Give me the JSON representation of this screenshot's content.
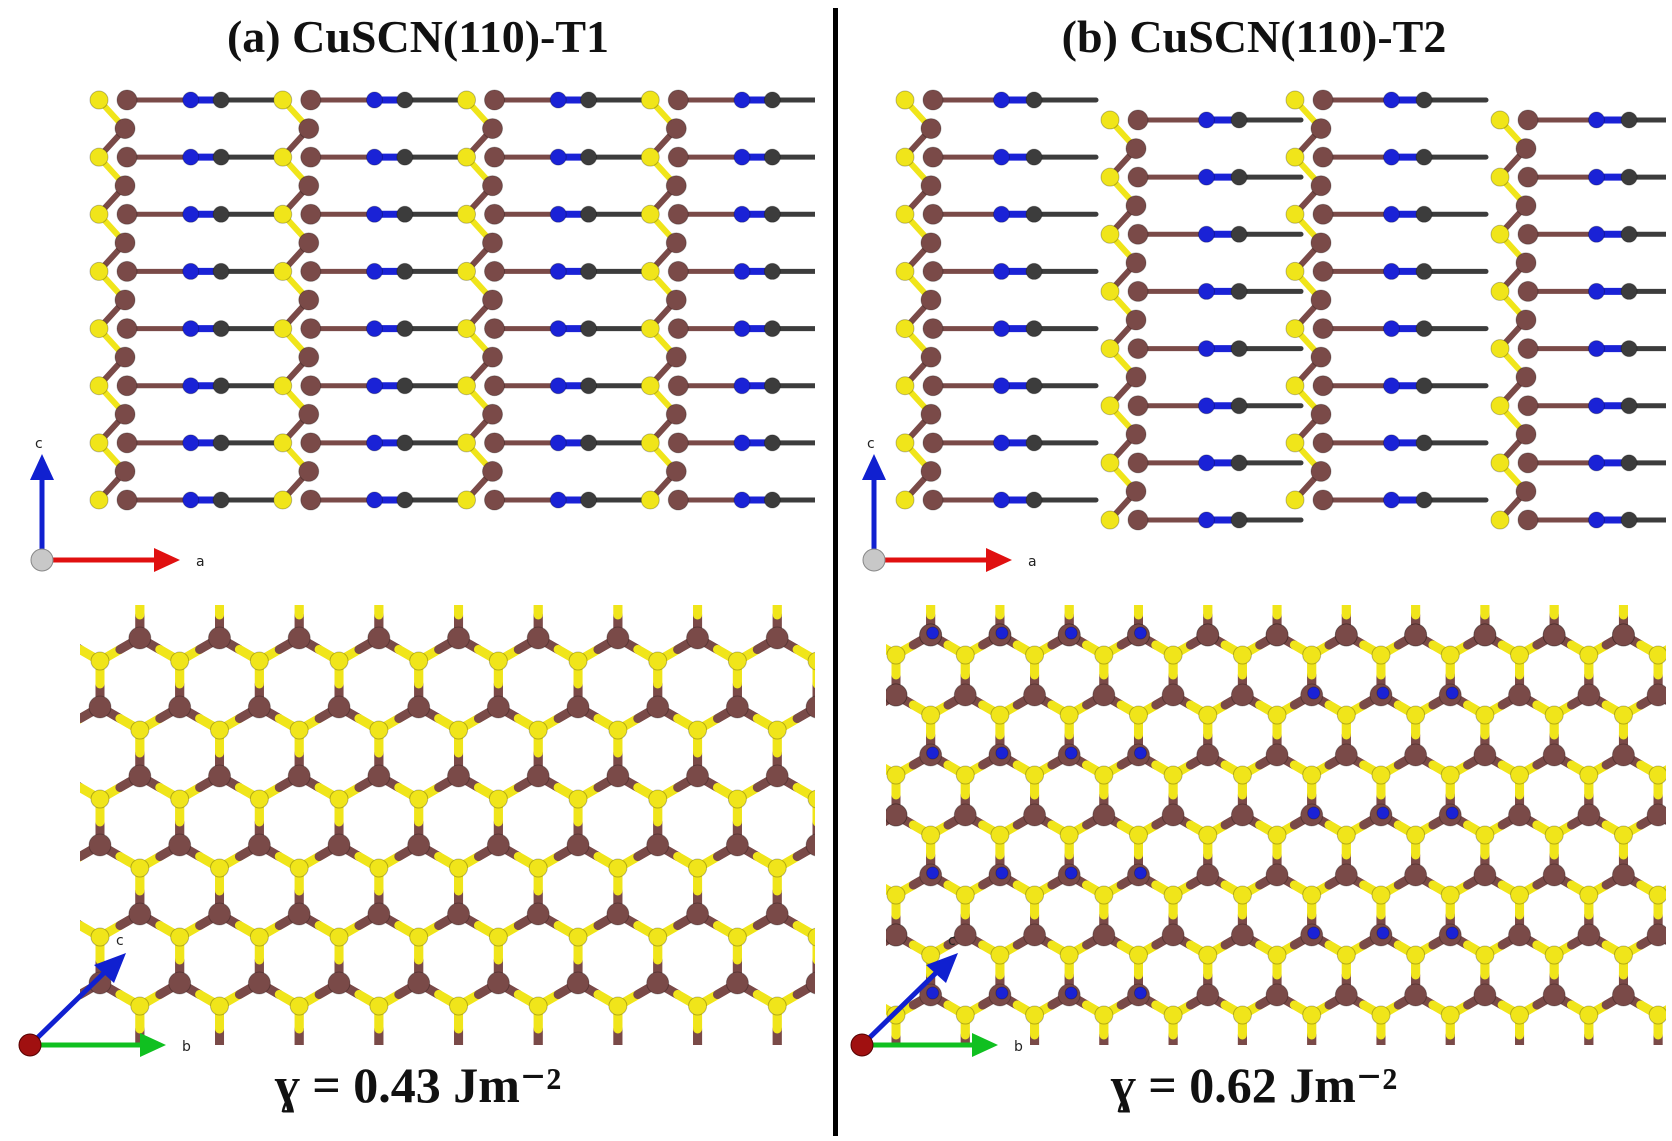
{
  "panels": [
    {
      "id": "a",
      "title": "(a) CuSCN(110)-T1",
      "surface_energy_label": "ɣ = 0.43 Jm⁻²",
      "side_view": {
        "axes": [
          "c",
          "a"
        ]
      },
      "top_view": {
        "axes": [
          "c",
          "b"
        ]
      }
    },
    {
      "id": "b",
      "title": "(b) CuSCN(110)-T2",
      "surface_energy_label": "ɣ = 0.62 Jm⁻²",
      "side_view": {
        "axes": [
          "c",
          "a"
        ]
      },
      "top_view": {
        "axes": [
          "c",
          "b"
        ]
      }
    }
  ],
  "colors": {
    "copper": "#7a4a48",
    "sulfur": "#f0e51a",
    "carbon": "#3c3c3c",
    "nitrogen": "#1a22d6",
    "axis_a": "#e01010",
    "axis_b": "#10c020",
    "axis_c": "#1020d0",
    "divider": "#000000"
  }
}
